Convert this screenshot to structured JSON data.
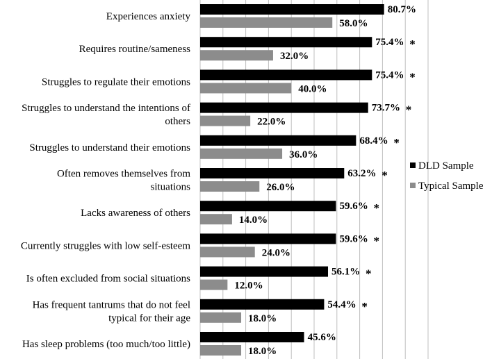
{
  "chart_data": {
    "type": "bar",
    "orientation": "horizontal",
    "categories": [
      [
        "Experiences anxiety"
      ],
      [
        "Requires routine/sameness"
      ],
      [
        "Struggles to regulate their emotions"
      ],
      [
        "Struggles to understand the intentions of",
        "others"
      ],
      [
        "Struggles to understand their emotions"
      ],
      [
        "Often removes themselves from",
        "situations"
      ],
      [
        "Lacks awareness of others"
      ],
      [
        "Currently struggles with low self-esteem"
      ],
      [
        "Is often excluded from social situations"
      ],
      [
        "Has frequent tantrums that do not feel",
        "typical for their age"
      ],
      [
        "Has sleep problems (too much/too little)"
      ]
    ],
    "series": [
      {
        "name": "DLD Sample",
        "color": "#000000",
        "values": [
          80.7,
          75.4,
          75.4,
          73.7,
          68.4,
          63.2,
          59.6,
          59.6,
          56.1,
          54.4,
          45.6
        ],
        "labels": [
          "80.7%",
          "75.4%",
          "75.4%",
          "73.7%",
          "68.4%",
          "63.2%",
          "59.6%",
          "59.6%",
          "56.1%",
          "54.4%",
          "45.6%"
        ]
      },
      {
        "name": "Typical Sample",
        "color": "#8c8c8c",
        "values": [
          58.0,
          32.0,
          40.0,
          22.0,
          36.0,
          26.0,
          14.0,
          24.0,
          12.0,
          18.0,
          18.0
        ],
        "labels": [
          "58.0%",
          "32.0%",
          "40.0%",
          "22.0%",
          "36.0%",
          "26.0%",
          "14.0%",
          "24.0%",
          "12.0%",
          "18.0%",
          "18.0%"
        ]
      }
    ],
    "significance": [
      false,
      true,
      true,
      true,
      true,
      true,
      true,
      true,
      true,
      true,
      false
    ],
    "significance_marker": "*",
    "xlim": [
      0,
      100
    ],
    "grid": true,
    "legend_position": "right",
    "title": "",
    "xlabel": "",
    "ylabel": ""
  }
}
